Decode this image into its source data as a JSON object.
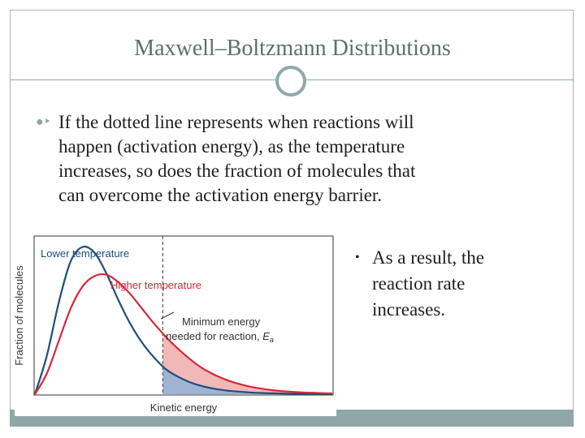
{
  "slide": {
    "title": "Maxwell–Boltzmann Distributions",
    "bullet_lines": [
      "If the dotted line represents when reactions will",
      "happen  (activation energy), as the temperature",
      "increases, so does the fraction of molecules that",
      "can overcome the activation energy barrier."
    ],
    "sub_bullet_lines": [
      "As a result, the",
      "reaction rate",
      "increases."
    ],
    "accent_color": "#8fa7a7"
  },
  "chart_data": {
    "type": "line",
    "title": "",
    "xlabel": "Kinetic energy",
    "ylabel": "Fraction of molecules",
    "grid": false,
    "series": [
      {
        "name": "Lower temperature",
        "color": "#1f4e79",
        "x": [
          0,
          0.04,
          0.08,
          0.12,
          0.16,
          0.2,
          0.24,
          0.28,
          0.32,
          0.36,
          0.4,
          0.44,
          0.48,
          0.52,
          0.56,
          0.6,
          0.64,
          0.68,
          0.72,
          0.76,
          0.8,
          0.85,
          0.9,
          0.95,
          1.0
        ],
        "y": [
          0,
          0.26,
          0.62,
          0.9,
          0.998,
          0.96,
          0.82,
          0.64,
          0.48,
          0.35,
          0.25,
          0.17,
          0.12,
          0.082,
          0.056,
          0.038,
          0.026,
          0.018,
          0.012,
          0.008,
          0.006,
          0.004,
          0.003,
          0.002,
          0.001
        ]
      },
      {
        "name": "Higher temperature",
        "color": "#d6283a",
        "x": [
          0,
          0.04,
          0.08,
          0.12,
          0.16,
          0.2,
          0.24,
          0.28,
          0.32,
          0.36,
          0.4,
          0.44,
          0.48,
          0.52,
          0.56,
          0.6,
          0.64,
          0.68,
          0.72,
          0.76,
          0.8,
          0.85,
          0.9,
          0.95,
          1.0
        ],
        "y": [
          0,
          0.14,
          0.36,
          0.58,
          0.73,
          0.8,
          0.81,
          0.76,
          0.68,
          0.58,
          0.48,
          0.39,
          0.31,
          0.24,
          0.18,
          0.135,
          0.1,
          0.073,
          0.053,
          0.038,
          0.027,
          0.018,
          0.012,
          0.008,
          0.005
        ]
      }
    ],
    "threshold": {
      "x": 0.43,
      "label_lines": [
        "Minimum energy",
        "needed for reaction, "
      ],
      "symbol": "E",
      "subscript": "a"
    },
    "shaded_region": "area under curves right of threshold",
    "xlim": [
      0,
      1
    ],
    "ylim": [
      0,
      1.05
    ]
  }
}
